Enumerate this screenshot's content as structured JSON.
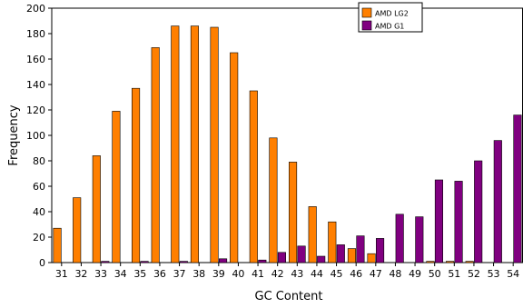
{
  "chart_data": {
    "type": "bar",
    "xlabel": "GC Content",
    "ylabel": "Frequency",
    "ylim": [
      0,
      200
    ],
    "yticks": [
      0,
      20,
      40,
      60,
      80,
      100,
      120,
      140,
      160,
      180,
      200
    ],
    "categories": [
      "31",
      "32",
      "33",
      "34",
      "35",
      "36",
      "37",
      "38",
      "39",
      "40",
      "41",
      "42",
      "43",
      "44",
      "45",
      "46",
      "47",
      "48",
      "49",
      "50",
      "51",
      "52",
      "53",
      "54"
    ],
    "series": [
      {
        "name": "AMD LG2",
        "color": "#ff7f00",
        "values": [
          27,
          51,
          84,
          119,
          137,
          169,
          186,
          186,
          185,
          165,
          135,
          98,
          79,
          44,
          32,
          11,
          7,
          0,
          0,
          1,
          1,
          1,
          0,
          0
        ]
      },
      {
        "name": "AMD G1",
        "color": "#800080",
        "values": [
          0,
          0,
          1,
          0,
          1,
          0,
          1,
          0,
          3,
          0,
          2,
          8,
          13,
          5,
          14,
          21,
          19,
          38,
          36,
          65,
          64,
          80,
          96,
          116
        ]
      }
    ],
    "legend_position": "top-right",
    "grid": false
  }
}
